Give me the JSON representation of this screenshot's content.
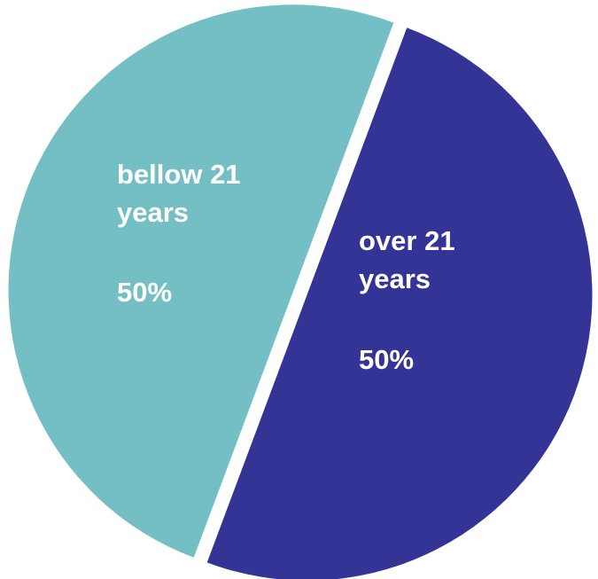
{
  "chart_data": {
    "type": "pie",
    "title": "",
    "slices": [
      {
        "label_lines": [
          "bellow 21",
          "years"
        ],
        "value_text": "50%",
        "value": 50,
        "color": "#343396"
      },
      {
        "label_lines": [
          "over 21",
          "years"
        ],
        "value_text": "50%",
        "value": 50,
        "color": "#73bfc4"
      }
    ],
    "legend": "none"
  }
}
